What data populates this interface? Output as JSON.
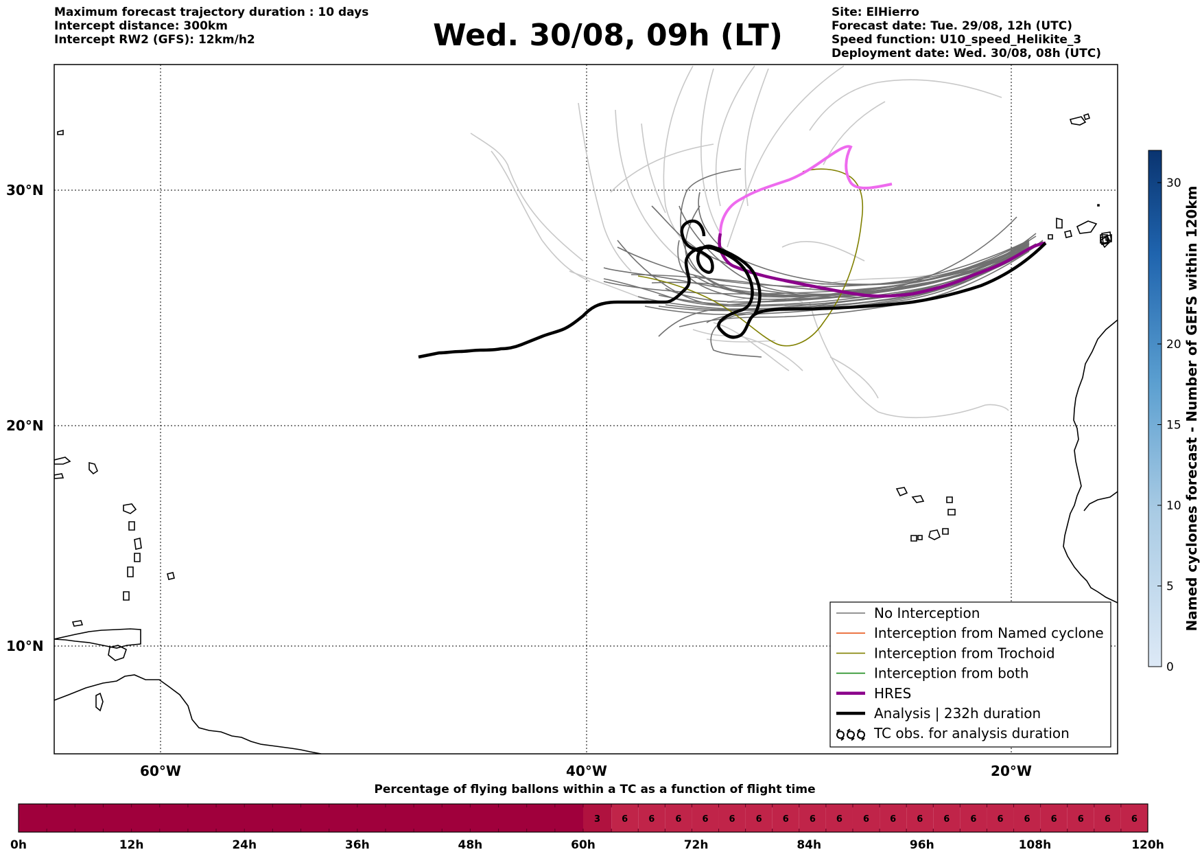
{
  "header": {
    "left_lines": [
      "Maximum forecast trajectory duration : 10 days",
      "Intercept distance: 300km",
      "Intercept RW2 (GFS):  12km/h2"
    ],
    "title": "Wed. 30/08, 09h (LT)",
    "right_lines": [
      "Site: ElHierro",
      "Forecast date: Tue. 29/08, 12h (UTC)",
      "Speed function: U10_speed_Helikite_3",
      "Deployment date: Wed. 30/08, 08h (UTC)"
    ]
  },
  "map": {
    "lat_labels": [
      "30°N",
      "20°N",
      "10°N"
    ],
    "lon_labels": [
      "60°W",
      "40°W",
      "20°W"
    ],
    "colors": {
      "no_interception": "#707070",
      "named_cyclone": "#e8581c",
      "trochoid": "#808000",
      "both": "#1a8a1a",
      "hres": "#8b008b",
      "analysis": "#000000",
      "extended_members": "#c8c8c8",
      "day1_hres": "#ee6aee"
    }
  },
  "legend": {
    "items": [
      {
        "label": "No Interception",
        "color": "#707070",
        "style": "thin"
      },
      {
        "label": "Interception from Named cyclone",
        "color": "#e8581c",
        "style": "thin"
      },
      {
        "label": "Interception from Trochoid",
        "color": "#808000",
        "style": "thin"
      },
      {
        "label": "Interception from both",
        "color": "#1a8a1a",
        "style": "thin"
      },
      {
        "label": "HRES",
        "color": "#8b008b",
        "style": "thick"
      },
      {
        "label": "Analysis | 232h duration",
        "color": "#000000",
        "style": "thick"
      },
      {
        "label": "TC obs. for analysis duration",
        "color": "#000000",
        "style": "cyclone"
      }
    ]
  },
  "colorbar": {
    "label": "Named cyclones forecast - Number of GEFS within 120km",
    "ticks": [
      "0",
      "5",
      "10",
      "15",
      "20",
      "30"
    ],
    "range": [
      0,
      32
    ]
  },
  "flight_bar": {
    "title": "Percentage of flying ballons within a TC as a function of flight time",
    "hour_labels": [
      "0h",
      "12h",
      "24h",
      "36h",
      "48h",
      "60h",
      "72h",
      "84h",
      "96h",
      "108h",
      "120h"
    ],
    "cells": [
      "3",
      "6",
      "6",
      "6",
      "6",
      "6",
      "6",
      "6",
      "6",
      "6",
      "6",
      "6",
      "6",
      "6",
      "6",
      "6",
      "6",
      "6",
      "6",
      "6",
      "6"
    ],
    "colors": {
      "high": "#a0003c",
      "mid": "#b0123f",
      "low": "#c02449"
    }
  }
}
